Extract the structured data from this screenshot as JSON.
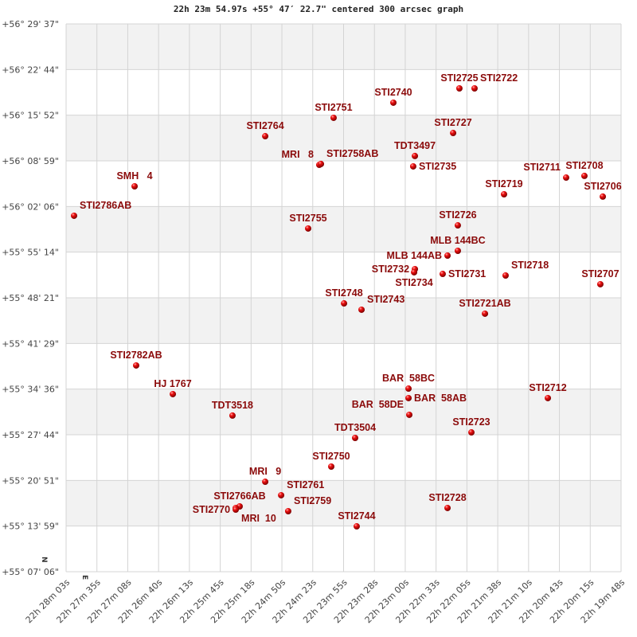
{
  "chart_data": {
    "type": "scatter",
    "title": "22h 23m 54.97s +55° 47′ 22.7\" centered 300 arcsec graph",
    "x_ticks": [
      "22h 28m 03s",
      "22h 27m 35s",
      "22h 27m 08s",
      "22h 26m 40s",
      "22h 26m 13s",
      "22h 25m 45s",
      "22h 25m 18s",
      "22h 24m 50s",
      "22h 24m 23s",
      "22h 23m 55s",
      "22h 23m 28s",
      "22h 23m 00s",
      "22h 22m 33s",
      "22h 22m 05s",
      "22h 21m 38s",
      "22h 21m 10s",
      "22h 20m 43s",
      "22h 20m 15s",
      "22h 19m 48s"
    ],
    "y_ticks": [
      "+56° 29' 37\"",
      "+56° 22' 44\"",
      "+56° 15' 52\"",
      "+56° 08' 59\"",
      "+56° 02' 06\"",
      "+55° 55' 14\"",
      "+55° 48' 21\"",
      "+55° 41' 29\"",
      "+55° 34' 36\"",
      "+55° 27' 44\"",
      "+55° 20' 51\"",
      "+55° 13' 59\"",
      "+55° 07' 06\""
    ],
    "xlim": [
      "22h 28m 03s",
      "22h 19m 48s"
    ],
    "ylim": [
      "+55° 07' 06\"",
      "+56° 29' 37\""
    ],
    "x_direction": "RA decreasing to the right",
    "grid": true,
    "banded_rows": true,
    "marker_color": "#dd0000",
    "label_color": "#8b0a0a",
    "compass": {
      "north": "N",
      "east": "E"
    },
    "points": [
      {
        "name": "STI2786AB",
        "ra": "22h 27m 55.9s",
        "dec": "+56° 00' 43\""
      },
      {
        "name": "SMH   4",
        "ra": "22h 27m 01.9s",
        "dec": "+56° 05' 09\""
      },
      {
        "name": "STI2764",
        "ra": "22h 25m 05.4s",
        "dec": "+56° 12' 42\""
      },
      {
        "name": "STI2751",
        "ra": "22h 24m 04.4s",
        "dec": "+56° 15' 28\""
      },
      {
        "name": "STI2740",
        "ra": "22h 23m 11.1s",
        "dec": "+56° 17' 45\""
      },
      {
        "name": "STI2725",
        "ra": "22h 22m 12.2s",
        "dec": "+56° 19' 54\""
      },
      {
        "name": "STI2722",
        "ra": "22h 21m 58.7s",
        "dec": "+56° 19' 54\""
      },
      {
        "name": "STI2727",
        "ra": "22h 22m 17.8s",
        "dec": "+56° 13' 11\""
      },
      {
        "name": "MRI   8",
        "ra": "22h 24m 17.2s",
        "dec": "+56° 08' 23\""
      },
      {
        "name": "STI2758AB",
        "ra": "22h 24m 15.7s",
        "dec": "+56° 08' 31\""
      },
      {
        "name": "TDT3497",
        "ra": "22h 22m 51.9s",
        "dec": "+56° 09' 43\""
      },
      {
        "name": "STI2735",
        "ra": "22h 22m 53.4s",
        "dec": "+56° 08' 09\""
      },
      {
        "name": "STI2719",
        "ra": "22h 21m 32.4s",
        "dec": "+56° 03' 57\""
      },
      {
        "name": "STI2711",
        "ra": "22h 20m 37.0s",
        "dec": "+56° 06' 28\""
      },
      {
        "name": "STI2708",
        "ra": "22h 20m 20.7s",
        "dec": "+56° 06' 43\""
      },
      {
        "name": "STI2706",
        "ra": "22h 20m 04.3s",
        "dec": "+56° 03' 36\""
      },
      {
        "name": "STI2755",
        "ra": "22h 24m 27.1s",
        "dec": "+55° 58' 48\""
      },
      {
        "name": "STI2726",
        "ra": "22h 22m 13.6s",
        "dec": "+55° 59' 16\""
      },
      {
        "name": "MLB 144BC",
        "ra": "22h 22m 13.6s",
        "dec": "+55° 55' 26\""
      },
      {
        "name": "MLB 144AB",
        "ra": "22h 22m 22.8s",
        "dec": "+55° 54' 43\""
      },
      {
        "name": "STI2732",
        "ra": "22h 22m 51.9s",
        "dec": "+55° 52' 41\""
      },
      {
        "name": "STI2734",
        "ra": "22h 22m 52.6s",
        "dec": "+55° 52' 12\""
      },
      {
        "name": "STI2731",
        "ra": "22h 22m 27.1s",
        "dec": "+55° 51' 57\""
      },
      {
        "name": "STI2718",
        "ra": "22h 21m 31.0s",
        "dec": "+55° 51' 43\""
      },
      {
        "name": "STI2707",
        "ra": "22h 20m 06.5s",
        "dec": "+55° 50' 24\""
      },
      {
        "name": "STI2748",
        "ra": "22h 23m 55.1s",
        "dec": "+55° 47' 31\""
      },
      {
        "name": "STI2743",
        "ra": "22h 23m 39.5s",
        "dec": "+55° 46' 34\""
      },
      {
        "name": "STI2721AB",
        "ra": "22h 21m 49.4s",
        "dec": "+55° 45' 58\""
      },
      {
        "name": "STI2782AB",
        "ra": "22h 27m 00.5s",
        "dec": "+55° 38' 10\""
      },
      {
        "name": "HJ 1767",
        "ra": "22h 26m 27.8s",
        "dec": "+55° 33' 51\""
      },
      {
        "name": "TDT3518",
        "ra": "22h 25m 34.6s",
        "dec": "+55° 30' 37\""
      },
      {
        "name": "BAR  58BC",
        "ra": "22h 22m 57.6s",
        "dec": "+55° 34' 41\""
      },
      {
        "name": "BAR  58AB",
        "ra": "22h 22m 57.6s",
        "dec": "+55° 33' 15\""
      },
      {
        "name": "BAR  58DE",
        "ra": "22h 22m 56.9s",
        "dec": "+55° 30' 44\""
      },
      {
        "name": "STI2712",
        "ra": "22h 20m 53.3s",
        "dec": "+55° 33' 15\""
      },
      {
        "name": "TDT3504",
        "ra": "22h 23m 45.2s",
        "dec": "+55° 27' 15\""
      },
      {
        "name": "STI2723",
        "ra": "22h 22m 01.5s",
        "dec": "+55° 28' 05\""
      },
      {
        "name": "STI2750",
        "ra": "22h 24m 06.5s",
        "dec": "+55° 22' 56\""
      },
      {
        "name": "MRI   9",
        "ra": "22h 25m 05.4s",
        "dec": "+55° 20' 39\""
      },
      {
        "name": "STI2761",
        "ra": "22h 24m 51.2s",
        "dec": "+55° 18' 37\""
      },
      {
        "name": "STI2759",
        "ra": "22h 24m 44.9s",
        "dec": "+55° 16' 13\""
      },
      {
        "name": "STI2766AB",
        "ra": "22h 25m 28.2s",
        "dec": "+55° 16' 56\""
      },
      {
        "name": "MRI  10",
        "ra": "22h 25m 31.7s",
        "dec": "+55° 16' 42\""
      },
      {
        "name": "STI2770",
        "ra": "22h 25m 31.7s",
        "dec": "+55° 16' 27\""
      },
      {
        "name": "STI2728",
        "ra": "22h 22m 22.8s",
        "dec": "+55° 16' 42\""
      },
      {
        "name": "STI2744",
        "ra": "22h 23m 43.8s",
        "dec": "+55° 13' 56\""
      }
    ]
  }
}
